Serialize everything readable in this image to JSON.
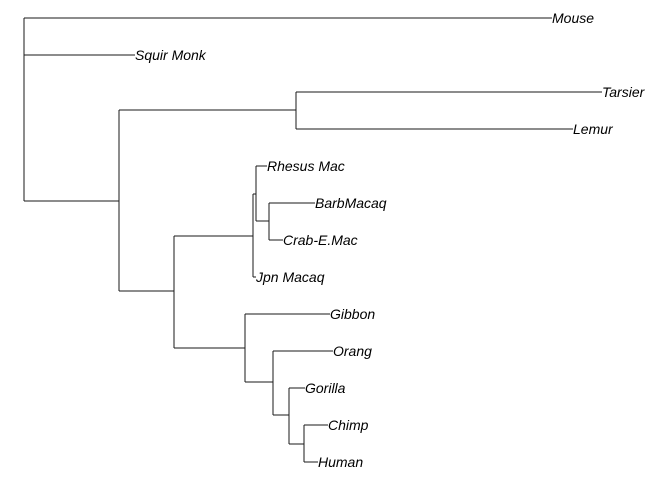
{
  "tree": {
    "layout": "rectangular",
    "tips": [
      "Mouse",
      "Squir Monk",
      "Tarsier",
      "Lemur",
      "Rhesus Mac",
      "BarbMacaq",
      "Crab-E.Mac",
      "Jpn Macaq",
      "Gibbon",
      "Orang",
      "Gorilla",
      "Chimp",
      "Human"
    ]
  }
}
